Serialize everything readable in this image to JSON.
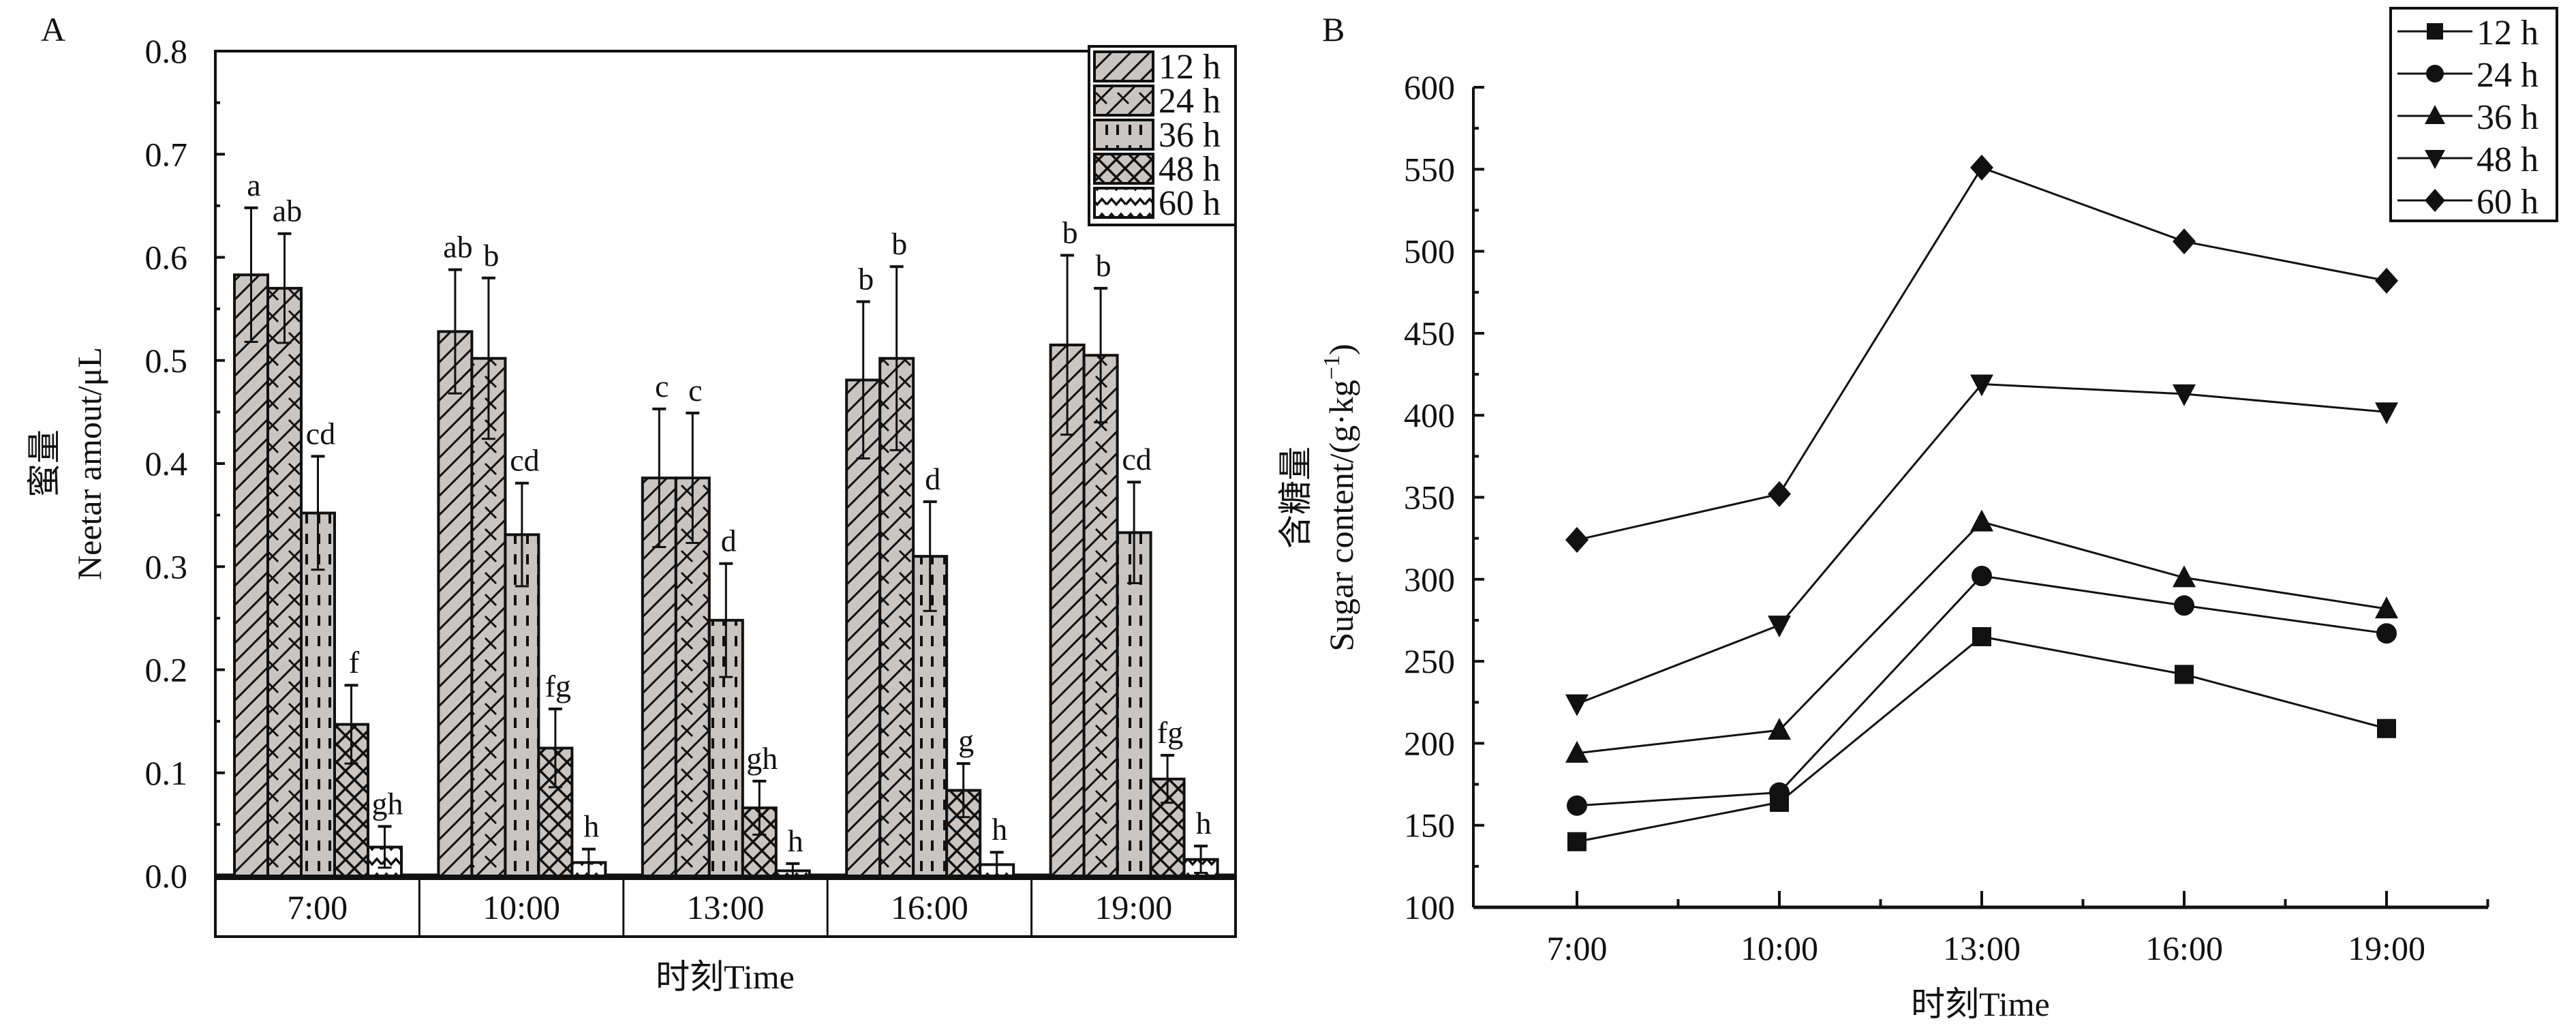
{
  "chart_data": [
    {
      "panel_label": "A",
      "type": "bar",
      "xlabel": "时刻Time",
      "ylabel_cn": "蜜量",
      "ylabel": "Neetar amout/μL",
      "ylim": [
        0.0,
        0.8
      ],
      "yticks": [
        "0.0",
        "0.1",
        "0.2",
        "0.3",
        "0.4",
        "0.5",
        "0.6",
        "0.7",
        "0.8"
      ],
      "categories": [
        "7:00",
        "10:00",
        "13:00",
        "16:00",
        "19:00"
      ],
      "legend_position": "top-right",
      "series": [
        {
          "name": "12 h",
          "pattern": "diagonal",
          "values": [
            0.583,
            0.528,
            0.386,
            0.481,
            0.515
          ],
          "errors": [
            0.065,
            0.06,
            0.067,
            0.076,
            0.087
          ],
          "letters": [
            "a",
            "ab",
            "c",
            "b",
            "b"
          ]
        },
        {
          "name": "24 h",
          "pattern": "brick",
          "values": [
            0.57,
            0.502,
            0.386,
            0.502,
            0.505
          ],
          "errors": [
            0.053,
            0.078,
            0.063,
            0.089,
            0.065
          ],
          "letters": [
            "ab",
            "b",
            "c",
            "b",
            "b"
          ]
        },
        {
          "name": "36 h",
          "pattern": "dashed-vertical",
          "values": [
            0.352,
            0.331,
            0.248,
            0.31,
            0.333
          ],
          "errors": [
            0.055,
            0.05,
            0.055,
            0.053,
            0.049
          ],
          "letters": [
            "cd",
            "cd",
            "d",
            "d",
            "cd"
          ]
        },
        {
          "name": "48 h",
          "pattern": "crosshatch",
          "values": [
            0.147,
            0.124,
            0.066,
            0.083,
            0.094
          ],
          "errors": [
            0.038,
            0.038,
            0.026,
            0.026,
            0.023
          ],
          "letters": [
            "f",
            "fg",
            "gh",
            "g",
            "fg"
          ]
        },
        {
          "name": "60 h",
          "pattern": "zigzag",
          "values": [
            0.028,
            0.013,
            0.005,
            0.011,
            0.016
          ],
          "errors": [
            0.02,
            0.013,
            0.007,
            0.012,
            0.013
          ],
          "letters": [
            "gh",
            "h",
            "h",
            "h",
            "h"
          ]
        }
      ]
    },
    {
      "panel_label": "B",
      "type": "line",
      "xlabel": "时刻Time",
      "ylabel_cn": "含糖量",
      "ylabel": "Sugar content/(g·kg",
      "ylabel_sup": "−1",
      "ylabel_end": ")",
      "ylim": [
        100,
        600
      ],
      "yticks": [
        "100",
        "150",
        "200",
        "250",
        "300",
        "350",
        "400",
        "450",
        "500",
        "550",
        "600"
      ],
      "categories": [
        "7:00",
        "10:00",
        "13:00",
        "16:00",
        "19:00"
      ],
      "legend_position": "top-right",
      "series": [
        {
          "name": "12 h",
          "marker": "square",
          "values": [
            140,
            164,
            265,
            242,
            209
          ]
        },
        {
          "name": "24 h",
          "marker": "circle",
          "values": [
            162,
            170,
            302,
            284,
            267
          ]
        },
        {
          "name": "36 h",
          "marker": "triangle-up",
          "values": [
            194,
            208,
            335,
            301,
            282
          ]
        },
        {
          "name": "48 h",
          "marker": "triangle-down",
          "values": [
            224,
            272,
            419,
            413,
            402
          ]
        },
        {
          "name": "60 h",
          "marker": "diamond",
          "values": [
            324,
            352,
            551,
            506,
            482
          ]
        }
      ]
    }
  ],
  "colors": {
    "bar_fill": "#c9c5c3",
    "ink": "#111111"
  }
}
